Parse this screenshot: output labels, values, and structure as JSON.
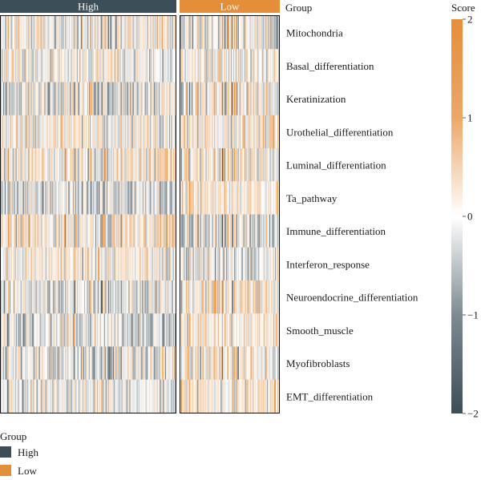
{
  "chart_data": {
    "type": "heatmap",
    "group_annotation": {
      "title": "Group",
      "groups": [
        {
          "name": "High",
          "color": "#3c4e57",
          "samples": 220
        },
        {
          "name": "Low",
          "color": "#e58e3a",
          "samples": 125
        }
      ]
    },
    "rows": [
      "Mitochondria",
      "Basal_differentiation",
      "Keratinization",
      "Urothelial_differentiation",
      "Luminal_differentiation",
      "Ta_pathway",
      "Immune_differentiation",
      "Interferon_response",
      "Neuroendocrine_differentiation",
      "Smooth_muscle",
      "Myofibroblasts",
      "EMT_differentiation"
    ],
    "row_bias": {
      "High": [
        0.0,
        0.0,
        -0.2,
        0.2,
        0.2,
        -0.4,
        0.3,
        0.2,
        -0.2,
        -0.3,
        -0.2,
        -0.1
      ],
      "Low": [
        -0.1,
        0.0,
        0.1,
        0.3,
        0.3,
        0.4,
        -0.3,
        -0.2,
        0.4,
        0.4,
        0.3,
        0.3
      ]
    },
    "color_scale": {
      "title": "Score",
      "min": -2,
      "max": 2,
      "ticks": [
        2,
        1,
        0,
        -1,
        -2
      ],
      "colors": [
        "#3c4e57",
        "#ffffff",
        "#e58e3a"
      ]
    },
    "legend": {
      "title": "Group",
      "items": [
        {
          "label": "High",
          "color": "#3c4e57"
        },
        {
          "label": "Low",
          "color": "#e58e3a"
        }
      ]
    }
  }
}
